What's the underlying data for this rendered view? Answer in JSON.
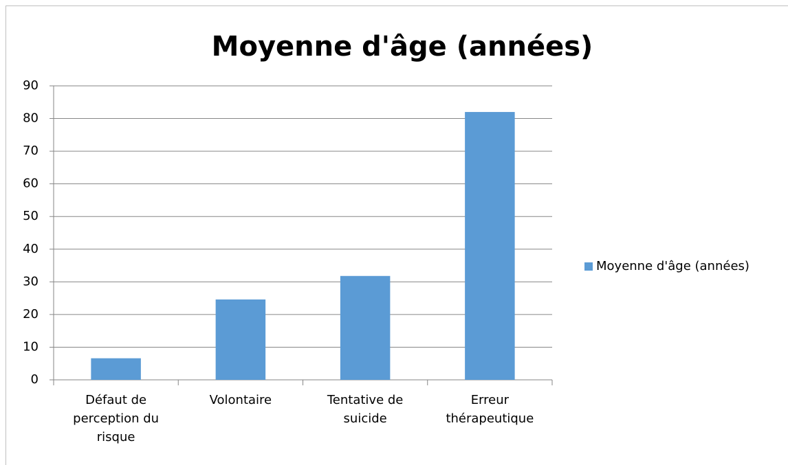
{
  "chart_data": {
    "type": "bar",
    "title": "Moyenne d'âge (années)",
    "categories": [
      "Défaut de perception du risque",
      "Volontaire",
      "Tentative de suicide",
      "Erreur thérapeutique"
    ],
    "series": [
      {
        "name": "Moyenne d'âge (années)",
        "color": "#5b9bd5",
        "values": [
          6.6,
          24.6,
          31.8,
          82
        ]
      }
    ],
    "ylim": [
      0,
      90
    ],
    "yticks": [
      0,
      10,
      20,
      30,
      40,
      50,
      60,
      70,
      80,
      90
    ],
    "grid": true,
    "legend": "right"
  }
}
